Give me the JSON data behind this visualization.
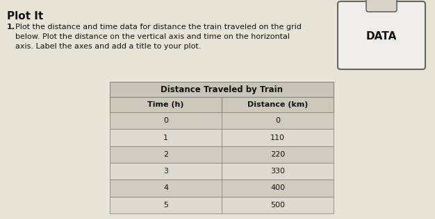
{
  "title": "Plot It",
  "instruction_number": "1.",
  "instruction_text": "Plot the distance and time data for distance the train traveled on the grid\nbelow. Plot the distance on the vertical axis and time on the horizontal\naxis. Label the axes and add a title to your plot.",
  "table_title": "Distance Traveled by Train",
  "col1_header": "Time (h)",
  "col2_header": "Distance (km)",
  "time": [
    0,
    1,
    2,
    3,
    4,
    5
  ],
  "distance": [
    0,
    110,
    220,
    330,
    400,
    500
  ],
  "data_label": "DATA",
  "bg_color": "#d6d0c4",
  "page_color": "#e8e4d8",
  "table_title_bg": "#c8c4b8",
  "table_header_bg": "#ccc8bc",
  "table_row_bg1": "#d0ccbf",
  "table_row_bg2": "#dedad0",
  "border_color": "#888880",
  "text_color": "#111111",
  "font_size_title": 11,
  "font_size_instruction": 8,
  "font_size_table_title": 8.5,
  "font_size_table_header": 8,
  "font_size_table_data": 8,
  "clipboard_bg": "#f0eeea",
  "clipboard_tab_bg": "#d8d4cc",
  "clipboard_border": "#666660"
}
